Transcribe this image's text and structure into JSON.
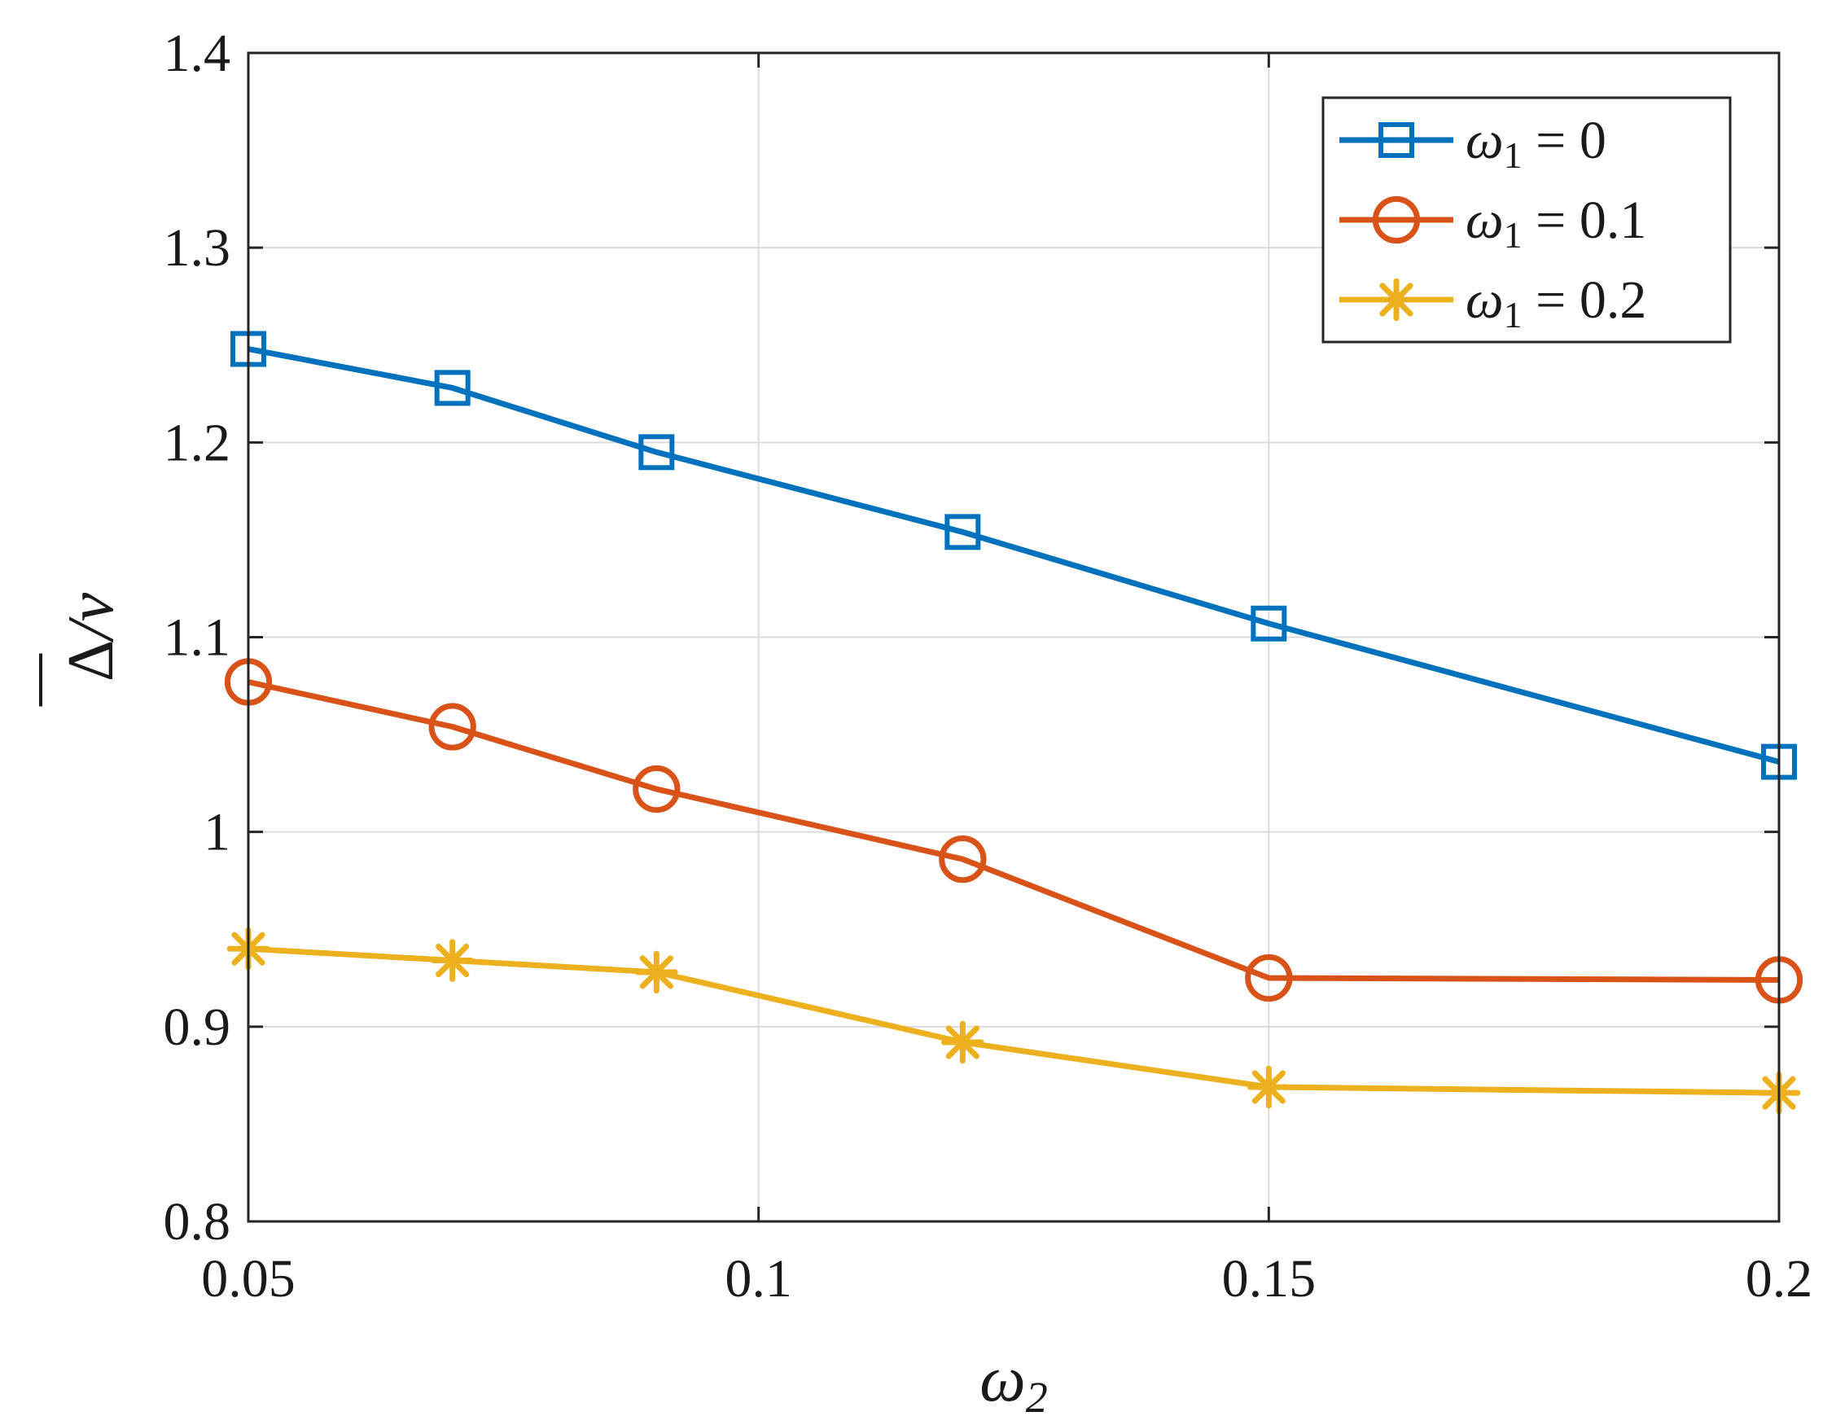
{
  "chart_data": {
    "type": "line",
    "title": "",
    "xlabel": "ω",
    "xlabel_sub": "2",
    "ylabel_symbol": "Δ",
    "ylabel_rest": "/ν",
    "x": [
      0.05,
      0.07,
      0.09,
      0.12,
      0.15,
      0.2
    ],
    "xlim": [
      0.05,
      0.2
    ],
    "ylim": [
      0.8,
      1.4
    ],
    "xticks": [
      0.05,
      0.1,
      0.15,
      0.2
    ],
    "xtick_labels": [
      "0.05",
      "0.1",
      "0.15",
      "0.2"
    ],
    "yticks": [
      0.8,
      0.9,
      1.0,
      1.1,
      1.2,
      1.3,
      1.4
    ],
    "ytick_labels": [
      "0.8",
      "0.9",
      "1",
      "1.1",
      "1.2",
      "1.3",
      "1.4"
    ],
    "grid": true,
    "legend_position": "top-right",
    "series": [
      {
        "name": "ω1 = 0",
        "legend_symbol": "ω",
        "legend_sub": "1",
        "legend_value": "= 0",
        "marker": "square",
        "color": "#0072BD",
        "values": [
          1.248,
          1.228,
          1.195,
          1.154,
          1.107,
          1.036
        ]
      },
      {
        "name": "ω1 = 0.1",
        "legend_symbol": "ω",
        "legend_sub": "1",
        "legend_value": "= 0.1",
        "marker": "circle",
        "color": "#D95319",
        "values": [
          1.077,
          1.054,
          1.022,
          0.986,
          0.925,
          0.924
        ]
      },
      {
        "name": "ω1 = 0.2",
        "legend_symbol": "ω",
        "legend_sub": "1",
        "legend_value": "= 0.2",
        "marker": "asterisk",
        "color": "#EDB120",
        "values": [
          0.94,
          0.934,
          0.928,
          0.892,
          0.869,
          0.866
        ]
      }
    ]
  }
}
